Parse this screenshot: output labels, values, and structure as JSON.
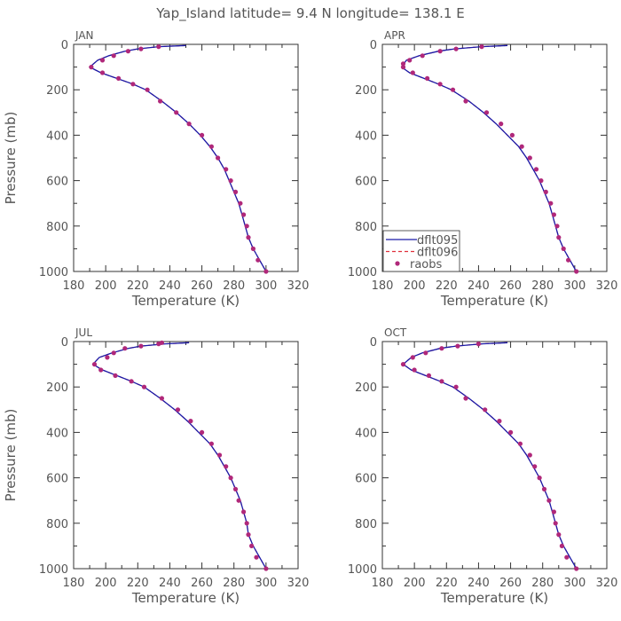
{
  "title": "Yap_Island   latitude=  9.4 N longitude= 138.1 E",
  "colors": {
    "dflt095": "#1a1aa8",
    "dflt096": "#e0303a",
    "raobs": "#b0287a",
    "axis": "#333333",
    "text": "#555555"
  },
  "chart_data": {
    "type": "line",
    "xlabel": "Temperature (K)",
    "ylabel": "Pressure (mb)",
    "xlim": [
      180,
      320
    ],
    "ylim": [
      1000,
      0
    ],
    "xticks": [
      "180",
      "200",
      "220",
      "240",
      "260",
      "280",
      "300",
      "320"
    ],
    "yticks": [
      "0",
      "200",
      "400",
      "600",
      "800",
      "1000"
    ],
    "grid": false,
    "legend": {
      "placement": "bottom-left (APR panel)",
      "entries": [
        {
          "name": "dflt095",
          "style": "solid-line"
        },
        {
          "name": "dflt096",
          "style": "dashed-line"
        },
        {
          "name": "raobs",
          "style": "dots"
        }
      ]
    },
    "panels": [
      {
        "label": "JAN",
        "model_p": [
          5,
          10,
          20,
          30,
          50,
          70,
          100,
          125,
          150,
          175,
          200,
          250,
          300,
          350,
          400,
          450,
          500,
          550,
          600,
          650,
          700,
          750,
          800,
          850,
          900,
          950,
          1000
        ],
        "model_t": [
          250,
          233,
          220,
          212,
          202,
          195,
          190,
          197,
          207,
          217,
          225,
          235,
          244,
          252,
          259,
          265,
          270,
          274,
          277,
          280,
          283,
          285,
          287,
          289,
          292,
          296,
          300
        ],
        "raobs_p": [
          10,
          20,
          30,
          50,
          70,
          100,
          125,
          150,
          175,
          200,
          250,
          300,
          350,
          400,
          450,
          500,
          550,
          600,
          650,
          700,
          750,
          800,
          850,
          900,
          950,
          1000
        ],
        "raobs_t": [
          233,
          222,
          214,
          205,
          198,
          191,
          198,
          208,
          217,
          226,
          234,
          244,
          252,
          260,
          266,
          270,
          275,
          278,
          281,
          284,
          286,
          288,
          289,
          292,
          295,
          300
        ]
      },
      {
        "label": "APR",
        "model_p": [
          5,
          10,
          20,
          30,
          50,
          70,
          100,
          125,
          150,
          175,
          200,
          250,
          300,
          350,
          400,
          450,
          500,
          550,
          600,
          650,
          700,
          750,
          800,
          850,
          900,
          950,
          1000
        ],
        "model_t": [
          258,
          242,
          225,
          215,
          203,
          195,
          192,
          197,
          206,
          215,
          223,
          234,
          243,
          251,
          258,
          265,
          270,
          274,
          278,
          281,
          284,
          286,
          288,
          290,
          293,
          297,
          301
        ],
        "raobs_p": [
          10,
          20,
          30,
          50,
          70,
          85,
          100,
          125,
          150,
          175,
          200,
          250,
          300,
          350,
          400,
          450,
          500,
          550,
          600,
          650,
          700,
          750,
          800,
          850,
          900,
          950,
          1000
        ],
        "raobs_t": [
          242,
          226,
          216,
          205,
          197,
          193,
          193,
          199,
          208,
          216,
          224,
          232,
          245,
          254,
          261,
          267,
          272,
          276,
          279,
          282,
          285,
          287,
          289,
          290,
          293,
          296,
          301
        ]
      },
      {
        "label": "JUL",
        "model_p": [
          5,
          10,
          20,
          30,
          50,
          70,
          100,
          125,
          150,
          175,
          200,
          250,
          300,
          350,
          400,
          450,
          500,
          550,
          600,
          650,
          700,
          750,
          800,
          850,
          900,
          950,
          1000
        ],
        "model_t": [
          252,
          237,
          222,
          214,
          204,
          196,
          192,
          198,
          207,
          216,
          224,
          234,
          243,
          251,
          258,
          265,
          270,
          274,
          278,
          281,
          284,
          286,
          288,
          289,
          292,
          296,
          300
        ],
        "raobs_p": [
          5,
          10,
          20,
          30,
          50,
          70,
          100,
          125,
          150,
          175,
          200,
          250,
          300,
          350,
          400,
          450,
          500,
          550,
          600,
          650,
          700,
          750,
          800,
          850,
          900,
          950,
          1000
        ],
        "raobs_t": [
          235,
          233,
          222,
          212,
          205,
          201,
          193,
          197,
          206,
          216,
          224,
          235,
          245,
          253,
          260,
          266,
          271,
          275,
          278,
          281,
          283,
          286,
          288,
          289,
          291,
          294,
          300
        ]
      },
      {
        "label": "OCT",
        "model_p": [
          5,
          10,
          20,
          30,
          50,
          70,
          100,
          125,
          150,
          175,
          200,
          250,
          300,
          350,
          400,
          450,
          500,
          550,
          600,
          650,
          700,
          750,
          800,
          850,
          900,
          950,
          1000
        ],
        "model_t": [
          258,
          242,
          226,
          216,
          205,
          198,
          193,
          198,
          207,
          216,
          224,
          234,
          243,
          251,
          258,
          265,
          270,
          274,
          278,
          281,
          284,
          286,
          288,
          290,
          293,
          297,
          301
        ],
        "raobs_p": [
          10,
          20,
          30,
          50,
          70,
          100,
          125,
          150,
          175,
          200,
          250,
          300,
          350,
          400,
          450,
          500,
          550,
          600,
          650,
          700,
          750,
          800,
          850,
          900,
          950,
          1000
        ],
        "raobs_t": [
          240,
          227,
          217,
          207,
          199,
          193,
          200,
          209,
          217,
          226,
          232,
          244,
          253,
          260,
          266,
          272,
          275,
          278,
          281,
          284,
          287,
          288,
          290,
          292,
          295,
          301
        ]
      }
    ]
  }
}
